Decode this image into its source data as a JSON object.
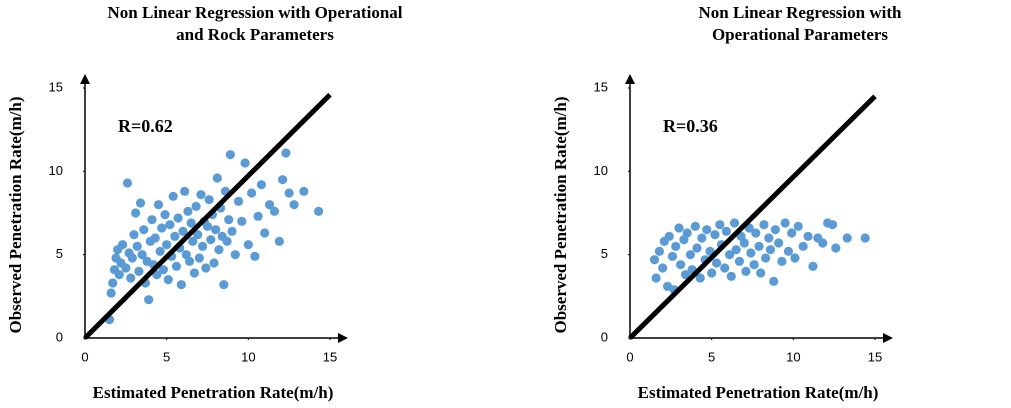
{
  "chart_data": [
    {
      "type": "scatter",
      "title": "Non Linear Regression with Operational\nand Rock Parameters",
      "xlabel": "Estimated Penetration Rate(m/h)",
      "ylabel": "Observed Penetration Rate(m/h)",
      "annotation": "R=0.62",
      "color": "#5b9bd5",
      "xlim": [
        0,
        15
      ],
      "ylim": [
        0,
        15
      ],
      "xticks": [
        0,
        5,
        10,
        15
      ],
      "yticks": [
        0,
        5,
        10,
        15
      ],
      "grid": false,
      "x": [
        1.5,
        1.6,
        1.7,
        1.8,
        1.9,
        2.0,
        2.1,
        2.2,
        2.3,
        2.5,
        2.6,
        2.7,
        2.8,
        2.9,
        3.0,
        3.1,
        3.2,
        3.3,
        3.4,
        3.5,
        3.6,
        3.7,
        3.8,
        3.9,
        4.0,
        4.1,
        4.2,
        4.3,
        4.4,
        4.5,
        4.6,
        4.7,
        4.8,
        4.9,
        5.0,
        5.1,
        5.2,
        5.3,
        5.4,
        5.5,
        5.6,
        5.7,
        5.8,
        5.9,
        6.0,
        6.1,
        6.2,
        6.3,
        6.4,
        6.5,
        6.6,
        6.7,
        6.8,
        6.9,
        7.0,
        7.1,
        7.2,
        7.3,
        7.4,
        7.5,
        7.6,
        7.7,
        7.8,
        7.9,
        8.0,
        8.1,
        8.2,
        8.3,
        8.4,
        8.5,
        8.6,
        8.7,
        8.8,
        8.9,
        9.0,
        9.2,
        9.4,
        9.6,
        9.8,
        10.0,
        10.2,
        10.4,
        10.6,
        10.8,
        11.0,
        11.3,
        11.6,
        11.9,
        12.1,
        12.3,
        12.5,
        12.8,
        13.4,
        14.3
      ],
      "values": [
        1.1,
        2.7,
        3.3,
        4.1,
        4.8,
        5.3,
        3.8,
        4.5,
        5.6,
        4.2,
        9.3,
        5.1,
        3.6,
        4.8,
        6.2,
        7.5,
        5.5,
        4.0,
        8.1,
        5.0,
        6.5,
        3.3,
        4.6,
        2.3,
        5.8,
        7.1,
        4.4,
        6.0,
        3.8,
        8.0,
        5.2,
        6.6,
        4.1,
        7.4,
        5.6,
        3.5,
        6.8,
        4.9,
        8.5,
        6.1,
        4.3,
        7.2,
        5.4,
        3.2,
        6.4,
        8.8,
        5.0,
        7.6,
        4.6,
        6.9,
        5.8,
        3.9,
        7.9,
        6.2,
        4.8,
        8.6,
        5.5,
        7.0,
        4.2,
        6.7,
        8.3,
        5.9,
        7.4,
        4.5,
        6.5,
        9.6,
        5.3,
        7.8,
        6.1,
        3.2,
        8.8,
        5.8,
        7.1,
        11.0,
        6.4,
        5.0,
        8.2,
        7.0,
        10.5,
        5.6,
        8.7,
        4.9,
        7.3,
        9.2,
        6.3,
        8.0,
        7.6,
        5.8,
        9.5,
        11.1,
        8.7,
        8.0,
        8.8,
        7.6
      ],
      "line": {
        "x": [
          0,
          15
        ],
        "values": [
          0,
          14.6
        ]
      }
    },
    {
      "type": "scatter",
      "title": "Non Linear Regression with\nOperational Parameters",
      "xlabel": "Estimated Penetration Rate(m/h)",
      "ylabel": "Observed Penetration Rate(m/h)",
      "annotation": "R=0.36",
      "color": "#5b9bd5",
      "xlim": [
        0,
        15
      ],
      "ylim": [
        0,
        15
      ],
      "xticks": [
        0,
        5,
        10,
        15
      ],
      "yticks": [
        0,
        5,
        10,
        15
      ],
      "grid": false,
      "x": [
        1.5,
        1.6,
        1.8,
        2.0,
        2.1,
        2.3,
        2.4,
        2.6,
        2.7,
        2.8,
        3.0,
        3.1,
        3.3,
        3.4,
        3.5,
        3.7,
        3.8,
        4.0,
        4.1,
        4.3,
        4.4,
        4.6,
        4.7,
        4.9,
        5.0,
        5.2,
        5.3,
        5.5,
        5.6,
        5.8,
        5.9,
        6.1,
        6.2,
        6.4,
        6.5,
        6.7,
        6.8,
        7.0,
        7.1,
        7.3,
        7.4,
        7.6,
        7.7,
        7.9,
        8.0,
        8.2,
        8.3,
        8.5,
        8.6,
        8.8,
        8.9,
        9.1,
        9.3,
        9.5,
        9.7,
        9.9,
        10.1,
        10.3,
        10.6,
        10.9,
        11.2,
        11.5,
        11.8,
        12.1,
        12.4,
        12.6,
        13.3,
        14.4
      ],
      "values": [
        4.7,
        3.6,
        5.2,
        4.2,
        5.8,
        3.1,
        6.1,
        4.9,
        2.9,
        5.5,
        6.6,
        4.4,
        5.9,
        3.8,
        6.3,
        5.0,
        4.1,
        6.7,
        5.4,
        3.6,
        6.0,
        4.7,
        6.5,
        5.2,
        3.9,
        6.2,
        4.5,
        6.8,
        5.6,
        4.2,
        6.4,
        5.0,
        3.7,
        6.9,
        5.3,
        4.6,
        6.1,
        5.7,
        4.0,
        6.6,
        5.1,
        4.4,
        6.3,
        5.5,
        3.9,
        6.8,
        4.8,
        6.0,
        5.3,
        3.4,
        6.5,
        5.7,
        4.6,
        6.9,
        5.2,
        6.3,
        4.8,
        6.7,
        5.5,
        6.1,
        4.3,
        6.0,
        5.7,
        6.9,
        6.8,
        5.4,
        6.0,
        6.0
      ],
      "line": {
        "x": [
          0,
          15
        ],
        "values": [
          0,
          14.5
        ]
      }
    }
  ]
}
